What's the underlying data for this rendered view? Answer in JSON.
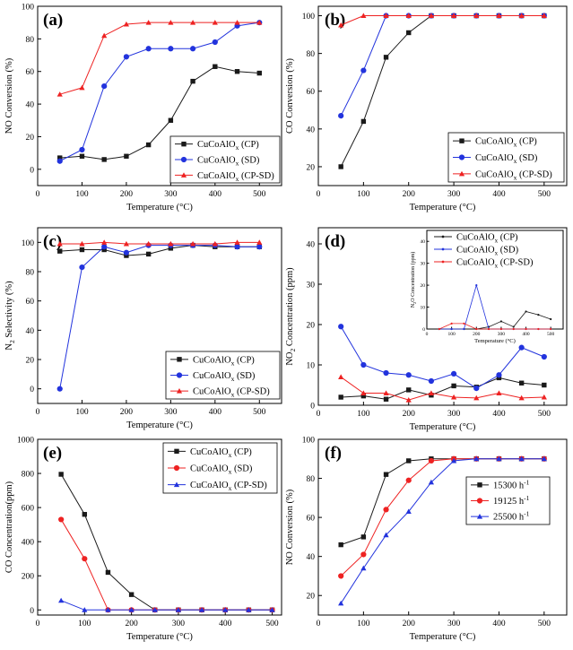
{
  "colors": {
    "black": "#1a1a1a",
    "blue": "#2233dd",
    "red": "#ee2222"
  },
  "chart_data": [
    {
      "id": "a",
      "type": "line",
      "panel_label": "(a)",
      "xlabel": "Temperature (°C)",
      "ylabel": "NO Conversion (%)",
      "xlim": [
        0,
        550
      ],
      "ylim": [
        -10,
        100
      ],
      "xticks": [
        0,
        100,
        200,
        300,
        400,
        500
      ],
      "yticks": [
        0,
        20,
        40,
        60,
        80,
        100
      ],
      "legend": "bottom-right",
      "x": [
        50,
        100,
        150,
        200,
        250,
        300,
        350,
        400,
        450,
        500
      ],
      "series": [
        {
          "name": "CuCoAlO",
          "sub": "x",
          "tail": " (CP)",
          "color": "#1a1a1a",
          "marker": "square",
          "values": [
            7,
            8,
            6,
            8,
            15,
            30,
            54,
            63,
            60,
            59
          ]
        },
        {
          "name": "CuCoAlO",
          "sub": "x",
          "tail": " (SD)",
          "color": "#2233dd",
          "marker": "circle",
          "values": [
            5,
            12,
            51,
            69,
            74,
            74,
            74,
            78,
            88,
            90
          ]
        },
        {
          "name": "CuCoAlO",
          "sub": "x",
          "tail": " (CP-SD)",
          "color": "#ee2222",
          "marker": "triangle",
          "values": [
            46,
            50,
            82,
            89,
            90,
            90,
            90,
            90,
            90,
            90
          ]
        }
      ]
    },
    {
      "id": "b",
      "type": "line",
      "panel_label": "(b)",
      "xlabel": "Temperature (°C)",
      "ylabel": "CO Conversion (%)",
      "xlim": [
        0,
        550
      ],
      "ylim": [
        10,
        105
      ],
      "xticks": [
        0,
        100,
        200,
        300,
        400,
        500
      ],
      "yticks": [
        20,
        40,
        60,
        80,
        100
      ],
      "legend": "bottom-right",
      "x": [
        50,
        100,
        150,
        200,
        250,
        300,
        350,
        400,
        450,
        500
      ],
      "series": [
        {
          "name": "CuCoAlO",
          "sub": "x",
          "tail": " (CP)",
          "color": "#1a1a1a",
          "marker": "square",
          "values": [
            20,
            44,
            78,
            91,
            100,
            100,
            100,
            100,
            100,
            100
          ]
        },
        {
          "name": "CuCoAlO",
          "sub": "x",
          "tail": " (SD)",
          "color": "#2233dd",
          "marker": "circle",
          "values": [
            47,
            71,
            100,
            100,
            100,
            100,
            100,
            100,
            100,
            100
          ]
        },
        {
          "name": "CuCoAlO",
          "sub": "x",
          "tail": " (CP-SD)",
          "color": "#ee2222",
          "marker": "triangle",
          "values": [
            95,
            100,
            100,
            100,
            100,
            100,
            100,
            100,
            100,
            100
          ]
        }
      ]
    },
    {
      "id": "c",
      "type": "line",
      "panel_label": "(c)",
      "xlabel": "Temperature (°C)",
      "ylabel": "N",
      "ylabel_sub": "2",
      "ylabel_tail": " Selectivity (%)",
      "xlim": [
        0,
        550
      ],
      "ylim": [
        -10,
        110
      ],
      "xticks": [
        0,
        100,
        200,
        300,
        400,
        500
      ],
      "yticks": [
        0,
        20,
        40,
        60,
        80,
        100
      ],
      "legend": "bottom-right",
      "x": [
        50,
        100,
        150,
        200,
        250,
        300,
        350,
        400,
        450,
        500
      ],
      "series": [
        {
          "name": "CuCoAlO",
          "sub": "x",
          "tail": " (CP)",
          "color": "#1a1a1a",
          "marker": "square",
          "values": [
            94,
            95,
            95,
            91,
            92,
            96,
            98,
            97,
            97,
            97
          ]
        },
        {
          "name": "CuCoAlO",
          "sub": "x",
          "tail": " (SD)",
          "color": "#2233dd",
          "marker": "circle",
          "values": [
            0,
            83,
            97,
            93,
            98,
            98,
            98,
            98,
            97,
            97
          ]
        },
        {
          "name": "CuCoAlO",
          "sub": "x",
          "tail": " (CP-SD)",
          "color": "#ee2222",
          "marker": "triangle",
          "values": [
            99,
            99,
            100,
            99,
            99,
            99,
            99,
            99,
            100,
            100
          ]
        }
      ]
    },
    {
      "id": "d",
      "type": "line",
      "panel_label": "(d)",
      "xlabel": "Temperature (°C)",
      "ylabel": "NO",
      "ylabel_sub": "2",
      "ylabel_tail": " Concentration (ppm)",
      "xlim": [
        0,
        550
      ],
      "ylim": [
        0,
        44
      ],
      "xticks": [
        0,
        100,
        200,
        300,
        400,
        500
      ],
      "yticks": [
        0,
        10,
        20,
        30,
        40
      ],
      "legend": "top-left",
      "x": [
        50,
        100,
        150,
        200,
        250,
        300,
        350,
        400,
        450,
        500
      ],
      "series": [
        {
          "name": "CuCoAlO",
          "sub": "x",
          "tail": " (CP)",
          "color": "#1a1a1a",
          "marker": "square",
          "values": [
            2,
            2.3,
            1.5,
            3.8,
            2.5,
            4.8,
            4.5,
            6.8,
            5.5,
            5
          ]
        },
        {
          "name": "CuCoAlO",
          "sub": "x",
          "tail": " (SD)",
          "color": "#2233dd",
          "marker": "circle",
          "values": [
            19.5,
            10,
            8,
            7.5,
            6,
            7.8,
            4.2,
            7.5,
            14.3,
            12
          ]
        },
        {
          "name": "CuCoAlO",
          "sub": "x",
          "tail": " (CP-SD)",
          "color": "#ee2222",
          "marker": "triangle",
          "values": [
            7,
            3,
            3,
            1.3,
            3,
            2,
            1.8,
            3,
            1.8,
            2
          ]
        }
      ],
      "inset": {
        "ylabel": "N",
        "ylabel_sub": "2",
        "ylabel_tail": "O Concentration (ppm)",
        "xlabel": "Temperature (°C)",
        "xlim": [
          0,
          550
        ],
        "ylim": [
          0,
          45
        ],
        "xticks": [
          0,
          100,
          200,
          300,
          400,
          500
        ],
        "yticks": [
          0,
          10,
          20,
          30,
          40
        ],
        "x": [
          50,
          100,
          150,
          200,
          250,
          300,
          350,
          400,
          450,
          500
        ],
        "series": [
          {
            "color": "#1a1a1a",
            "values": [
              0,
              0,
              0,
              0,
              1,
              3.5,
              1,
              8,
              6.5,
              4.5
            ]
          },
          {
            "color": "#2233dd",
            "values": [
              0,
              0,
              0,
              20,
              0,
              0,
              0,
              0,
              0,
              0
            ]
          },
          {
            "color": "#ee2222",
            "values": [
              0,
              2.5,
              2.5,
              0,
              0,
              0,
              0,
              0,
              0,
              0
            ]
          }
        ]
      }
    },
    {
      "id": "e",
      "type": "line",
      "panel_label": "(e)",
      "xlabel": "Temperature (°C)",
      "ylabel": "CO Concentration(ppm)",
      "xlim": [
        0,
        520
      ],
      "ylim": [
        -30,
        1000
      ],
      "xticks": [
        0,
        100,
        200,
        300,
        400,
        500
      ],
      "yticks": [
        0,
        200,
        400,
        600,
        800,
        1000
      ],
      "legend": "top-right",
      "x": [
        50,
        100,
        150,
        200,
        250,
        300,
        350,
        400,
        450,
        500
      ],
      "series": [
        {
          "name": "CuCoAlO",
          "sub": "x",
          "tail": " (CP)",
          "color": "#1a1a1a",
          "marker": "square",
          "values": [
            795,
            560,
            220,
            90,
            0,
            0,
            0,
            0,
            0,
            0
          ]
        },
        {
          "name": "CuCoAlO",
          "sub": "x",
          "tail": " (SD)",
          "color": "#ee2222",
          "marker": "circle",
          "values": [
            530,
            300,
            0,
            0,
            0,
            0,
            0,
            0,
            0,
            0
          ]
        },
        {
          "name": "CuCoAlO",
          "sub": "x",
          "tail": " (CP-SD)",
          "color": "#2233dd",
          "marker": "triangle",
          "values": [
            55,
            0,
            0,
            0,
            0,
            0,
            0,
            0,
            0,
            0
          ]
        }
      ]
    },
    {
      "id": "f",
      "type": "line",
      "panel_label": "(f)",
      "xlabel": "Temperature (°C)",
      "ylabel": "NO Conversion (%)",
      "xlim": [
        0,
        550
      ],
      "ylim": [
        10,
        100
      ],
      "xticks": [
        0,
        100,
        200,
        300,
        400,
        500
      ],
      "yticks": [
        20,
        40,
        60,
        80,
        100
      ],
      "legend": "right-middle",
      "x": [
        50,
        100,
        150,
        200,
        250,
        300,
        350,
        400,
        450,
        500
      ],
      "series": [
        {
          "name": "15300 h",
          "sup": "-1",
          "color": "#1a1a1a",
          "marker": "square",
          "values": [
            46,
            50,
            82,
            89,
            90,
            90,
            90,
            90,
            90,
            90
          ]
        },
        {
          "name": "19125 h",
          "sup": "-1",
          "color": "#ee2222",
          "marker": "circle",
          "values": [
            30,
            41,
            64,
            79,
            89,
            90,
            90,
            90,
            90,
            90
          ]
        },
        {
          "name": "25500 h",
          "sup": "-1",
          "color": "#2233dd",
          "marker": "triangle",
          "values": [
            16,
            34,
            51,
            63,
            78,
            89,
            90,
            90,
            90,
            90
          ]
        }
      ]
    }
  ]
}
